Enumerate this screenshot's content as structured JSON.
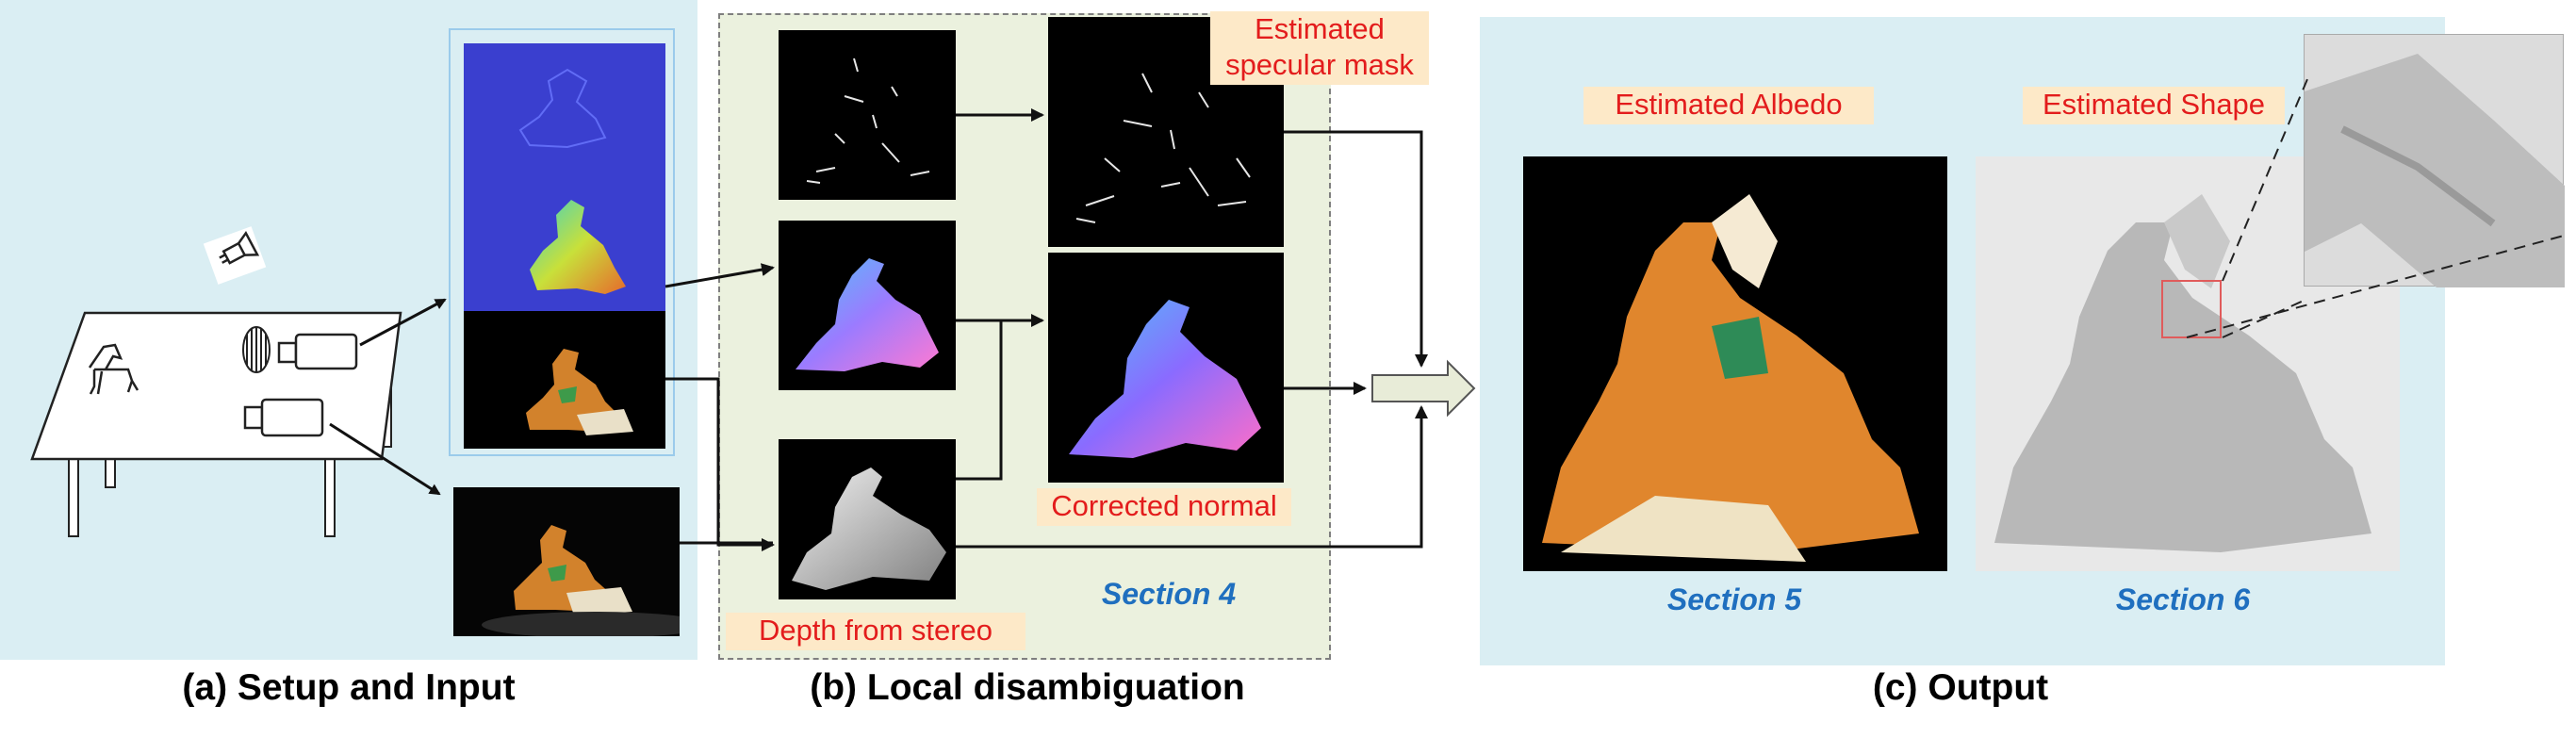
{
  "panels": {
    "setup": {
      "caption": "(a) Setup and Input"
    },
    "local": {
      "caption": "(b) Local disambiguation",
      "label_specular": "Estimated specular mask",
      "label_specular_line1": "Estimated",
      "label_specular_line2": "specular mask",
      "label_corrected": "Corrected normal",
      "label_depth": "Depth from stereo",
      "section": "Section 4"
    },
    "output": {
      "caption": "(c) Output",
      "label_albedo": "Estimated Albedo",
      "label_shape": "Estimated Shape",
      "section_albedo": "Section 5",
      "section_shape": "Section 6"
    }
  },
  "colors": {
    "panel_blue": "#daeef3",
    "panel_green": "#ebf1de",
    "label_bg": "#fde9c8",
    "label_text": "#e31c1c",
    "section_text": "#1f6fbf"
  }
}
